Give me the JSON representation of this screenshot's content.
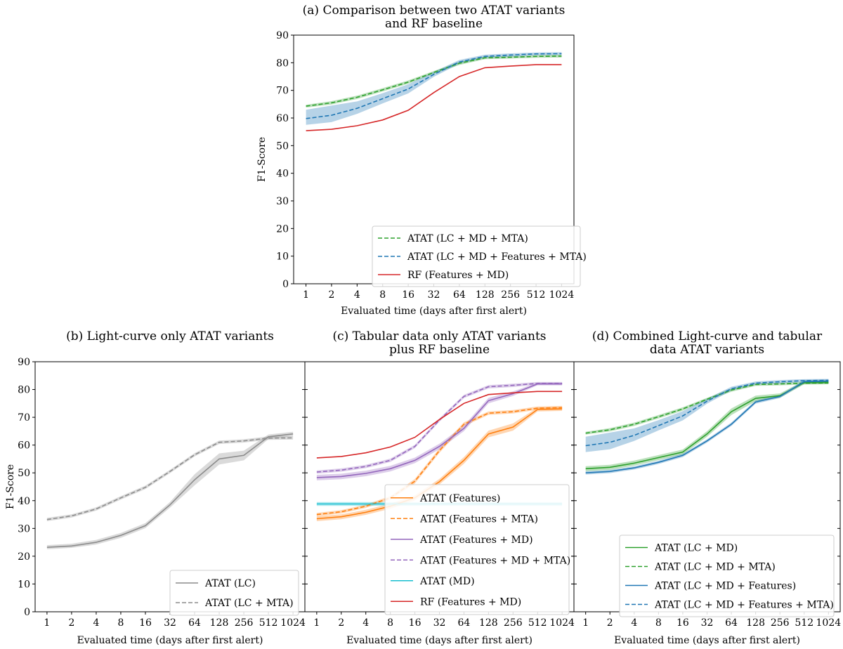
{
  "x_ticks": [
    "1",
    "2",
    "4",
    "8",
    "16",
    "32",
    "64",
    "128",
    "256",
    "512",
    "1024"
  ],
  "y_ticks": [
    0,
    10,
    20,
    30,
    40,
    50,
    60,
    70,
    80,
    90
  ],
  "colors": {
    "green": "#2ca02c",
    "blue": "#1f77b4",
    "red": "#d62728",
    "gray": "#8c8c8c",
    "orange": "#ff7f0e",
    "purple": "#9467bd",
    "cyan": "#17becf"
  },
  "chart_data": [
    {
      "type": "line",
      "title_lines": [
        "(a) Comparison between two ATAT variants",
        "and RF baseline"
      ],
      "xlabel": "Evaluated time (days after first alert)",
      "ylabel": "F1-Score",
      "ylim": [
        0,
        90
      ],
      "legend_position": "lower-right",
      "series": [
        {
          "name": "ATAT (LC + MD + MTA)",
          "color": "green",
          "dash": true,
          "values": [
            64.3,
            65.5,
            67.5,
            70.2,
            73.0,
            76.5,
            79.8,
            81.8,
            82.0,
            82.3,
            82.4
          ],
          "band": [
            [
              63.8,
              64.8
            ],
            [
              64.9,
              66.1
            ],
            [
              66.9,
              68.1
            ],
            [
              69.6,
              70.8
            ],
            [
              72.4,
              73.6
            ],
            [
              76.0,
              77.0
            ],
            [
              79.2,
              80.4
            ],
            [
              81.3,
              82.3
            ],
            [
              81.5,
              82.5
            ],
            [
              81.8,
              82.8
            ],
            [
              81.9,
              82.9
            ]
          ]
        },
        {
          "name": "ATAT (LC + MD + Features + MTA)",
          "color": "blue",
          "dash": true,
          "values": [
            59.8,
            61.0,
            63.5,
            67.0,
            70.5,
            75.8,
            80.3,
            82.3,
            82.8,
            83.2,
            83.3
          ],
          "band": [
            [
              57.5,
              63.0
            ],
            [
              58.5,
              64.5
            ],
            [
              61.5,
              66.0
            ],
            [
              65.3,
              69.0
            ],
            [
              68.9,
              72.2
            ],
            [
              74.9,
              76.7
            ],
            [
              79.6,
              81.0
            ],
            [
              81.7,
              82.9
            ],
            [
              82.2,
              83.4
            ],
            [
              82.7,
              83.7
            ],
            [
              82.8,
              83.8
            ]
          ]
        },
        {
          "name": "RF (Features + MD)",
          "color": "red",
          "dash": false,
          "values": [
            55.4,
            55.9,
            57.2,
            59.3,
            62.8,
            69.2,
            75.0,
            78.2,
            78.8,
            79.3,
            79.3
          ],
          "band": null
        }
      ]
    },
    {
      "type": "line",
      "title_lines": [
        "(b) Light-curve only ATAT variants"
      ],
      "xlabel": "Evaluated time (days after first alert)",
      "ylabel": "F1-Score",
      "ylim": [
        0,
        90
      ],
      "legend_position": "lower-right",
      "series": [
        {
          "name": "ATAT (LC)",
          "color": "gray",
          "dash": false,
          "values": [
            23.2,
            23.7,
            25.0,
            27.5,
            31.0,
            38.5,
            47.5,
            55.0,
            56.3,
            63.0,
            64.0
          ],
          "band": [
            [
              22.5,
              24.0
            ],
            [
              23.0,
              24.5
            ],
            [
              24.2,
              25.9
            ],
            [
              26.6,
              28.4
            ],
            [
              30.1,
              31.9
            ],
            [
              37.5,
              39.5
            ],
            [
              45.5,
              49.5
            ],
            [
              53.0,
              57.0
            ],
            [
              54.5,
              58.0
            ],
            [
              62.2,
              63.8
            ],
            [
              63.2,
              64.8
            ]
          ]
        },
        {
          "name": "ATAT (LC + MTA)",
          "color": "gray",
          "dash": true,
          "values": [
            33.2,
            34.5,
            37.0,
            41.0,
            44.8,
            50.5,
            56.5,
            61.0,
            61.5,
            62.5,
            62.6
          ],
          "band": [
            [
              32.6,
              33.8
            ],
            [
              33.9,
              35.1
            ],
            [
              36.4,
              37.6
            ],
            [
              40.4,
              41.6
            ],
            [
              44.2,
              45.4
            ],
            [
              49.9,
              51.1
            ],
            [
              55.9,
              57.1
            ],
            [
              60.4,
              61.6
            ],
            [
              60.9,
              62.1
            ],
            [
              61.9,
              63.1
            ],
            [
              62.0,
              63.2
            ]
          ]
        }
      ]
    },
    {
      "type": "line",
      "title_lines": [
        "(c) Tabular data only ATAT variants",
        "plus RF baseline"
      ],
      "xlabel": "Evaluated time (days after first alert)",
      "ylabel": "",
      "ylim": [
        0,
        90
      ],
      "legend_position": "lower-right",
      "series": [
        {
          "name": "ATAT (Features)",
          "color": "orange",
          "dash": false,
          "values": [
            33.5,
            34.2,
            35.8,
            38.0,
            41.0,
            46.8,
            54.5,
            64.0,
            66.5,
            72.8,
            73.0
          ],
          "band": [
            [
              32.6,
              34.4
            ],
            [
              33.3,
              35.1
            ],
            [
              34.9,
              36.7
            ],
            [
              37.1,
              38.9
            ],
            [
              40.1,
              41.9
            ],
            [
              45.8,
              47.8
            ],
            [
              53.3,
              55.7
            ],
            [
              62.8,
              65.2
            ],
            [
              65.2,
              67.8
            ],
            [
              72.1,
              73.5
            ],
            [
              72.3,
              73.7
            ]
          ]
        },
        {
          "name": "ATAT (Features + MTA)",
          "color": "orange",
          "dash": true,
          "values": [
            35.0,
            36.0,
            38.0,
            41.0,
            47.0,
            58.0,
            67.5,
            71.5,
            72.0,
            73.3,
            73.5
          ],
          "band": [
            [
              34.4,
              35.6
            ],
            [
              35.4,
              36.6
            ],
            [
              37.4,
              38.6
            ],
            [
              40.4,
              41.6
            ],
            [
              46.2,
              47.8
            ],
            [
              57.2,
              58.8
            ],
            [
              66.8,
              68.2
            ],
            [
              70.9,
              72.1
            ],
            [
              71.4,
              72.6
            ],
            [
              72.7,
              73.9
            ],
            [
              72.9,
              74.1
            ]
          ]
        },
        {
          "name": "ATAT (Features + MD)",
          "color": "purple",
          "dash": false,
          "values": [
            48.3,
            48.7,
            49.8,
            51.5,
            54.5,
            59.5,
            66.0,
            76.0,
            78.5,
            82.0,
            82.0
          ],
          "band": [
            [
              47.3,
              49.3
            ],
            [
              47.7,
              49.7
            ],
            [
              48.8,
              50.8
            ],
            [
              50.5,
              52.5
            ],
            [
              53.5,
              55.5
            ],
            [
              58.5,
              60.5
            ],
            [
              65.0,
              67.0
            ],
            [
              75.0,
              77.0
            ],
            [
              77.7,
              79.3
            ],
            [
              81.5,
              82.5
            ],
            [
              81.5,
              82.5
            ]
          ]
        },
        {
          "name": "ATAT (Features + MD + MTA)",
          "color": "purple",
          "dash": true,
          "values": [
            50.3,
            51.0,
            52.3,
            54.5,
            59.5,
            69.0,
            77.5,
            81.0,
            81.5,
            82.2,
            82.2
          ],
          "band": [
            [
              49.7,
              50.9
            ],
            [
              50.4,
              51.6
            ],
            [
              51.7,
              52.9
            ],
            [
              53.9,
              55.1
            ],
            [
              58.9,
              60.1
            ],
            [
              68.4,
              69.6
            ],
            [
              76.9,
              78.1
            ],
            [
              80.4,
              81.6
            ],
            [
              80.9,
              82.1
            ],
            [
              81.7,
              82.7
            ],
            [
              81.7,
              82.7
            ]
          ]
        },
        {
          "name": "ATAT (MD)",
          "color": "cyan",
          "dash": false,
          "values": [
            38.8,
            38.8,
            38.8,
            38.8,
            38.8,
            38.8,
            38.8,
            38.8,
            38.8,
            38.8,
            38.8
          ],
          "band": [
            [
              38.1,
              39.5
            ],
            [
              38.1,
              39.5
            ],
            [
              38.1,
              39.5
            ],
            [
              38.1,
              39.5
            ],
            [
              38.1,
              39.5
            ],
            [
              38.1,
              39.5
            ],
            [
              38.1,
              39.5
            ],
            [
              38.1,
              39.5
            ],
            [
              38.1,
              39.5
            ],
            [
              38.1,
              39.5
            ],
            [
              38.1,
              39.5
            ]
          ]
        },
        {
          "name": "RF (Features + MD)",
          "color": "red",
          "dash": false,
          "values": [
            55.4,
            55.9,
            57.2,
            59.3,
            62.8,
            69.2,
            75.0,
            78.2,
            78.8,
            79.3,
            79.3
          ],
          "band": null
        }
      ]
    },
    {
      "type": "line",
      "title_lines": [
        "(d) Combined Light-curve and tabular",
        "data ATAT variants"
      ],
      "xlabel": "Evaluated time (days after first alert)",
      "ylabel": "",
      "ylim": [
        0,
        90
      ],
      "legend_position": "lower-right",
      "series": [
        {
          "name": "ATAT (LC + MD)",
          "color": "green",
          "dash": false,
          "values": [
            51.5,
            52.0,
            53.5,
            55.5,
            57.5,
            64.0,
            72.0,
            76.8,
            77.8,
            82.5,
            82.6
          ],
          "band": [
            [
              50.6,
              52.4
            ],
            [
              51.1,
              52.9
            ],
            [
              52.6,
              54.4
            ],
            [
              54.6,
              56.4
            ],
            [
              56.6,
              58.4
            ],
            [
              63.0,
              65.0
            ],
            [
              70.8,
              73.2
            ],
            [
              75.8,
              77.8
            ],
            [
              77.0,
              78.6
            ],
            [
              81.9,
              83.1
            ],
            [
              82.0,
              83.2
            ]
          ]
        },
        {
          "name": "ATAT (LC + MD + MTA)",
          "color": "green",
          "dash": true,
          "values": [
            64.3,
            65.5,
            67.5,
            70.2,
            73.0,
            76.5,
            79.8,
            81.8,
            82.0,
            82.3,
            82.4
          ],
          "band": [
            [
              63.8,
              64.8
            ],
            [
              64.9,
              66.1
            ],
            [
              66.9,
              68.1
            ],
            [
              69.6,
              70.8
            ],
            [
              72.4,
              73.6
            ],
            [
              76.0,
              77.0
            ],
            [
              79.2,
              80.4
            ],
            [
              81.3,
              82.3
            ],
            [
              81.5,
              82.5
            ],
            [
              81.8,
              82.8
            ],
            [
              81.9,
              82.9
            ]
          ]
        },
        {
          "name": "ATAT (LC + MD + Features)",
          "color": "blue",
          "dash": false,
          "values": [
            50.0,
            50.5,
            51.8,
            53.8,
            56.3,
            61.5,
            67.5,
            75.5,
            77.5,
            82.8,
            83.0
          ],
          "band": [
            [
              49.4,
              50.6
            ],
            [
              49.9,
              51.1
            ],
            [
              51.2,
              52.4
            ],
            [
              53.2,
              54.4
            ],
            [
              55.7,
              56.9
            ],
            [
              60.9,
              62.1
            ],
            [
              66.9,
              68.1
            ],
            [
              74.9,
              76.1
            ],
            [
              76.9,
              78.1
            ],
            [
              82.2,
              83.4
            ],
            [
              82.4,
              83.6
            ]
          ]
        },
        {
          "name": "ATAT (LC + MD + Features + MTA)",
          "color": "blue",
          "dash": true,
          "values": [
            59.8,
            61.0,
            63.5,
            67.0,
            70.5,
            75.8,
            80.3,
            82.3,
            82.8,
            83.2,
            83.3
          ],
          "band": [
            [
              57.5,
              63.0
            ],
            [
              58.5,
              64.5
            ],
            [
              61.5,
              66.0
            ],
            [
              65.3,
              69.0
            ],
            [
              68.9,
              72.2
            ],
            [
              74.9,
              76.7
            ],
            [
              79.6,
              81.0
            ],
            [
              81.7,
              82.9
            ],
            [
              82.2,
              83.4
            ],
            [
              82.7,
              83.7
            ],
            [
              82.8,
              83.8
            ]
          ]
        }
      ]
    }
  ]
}
